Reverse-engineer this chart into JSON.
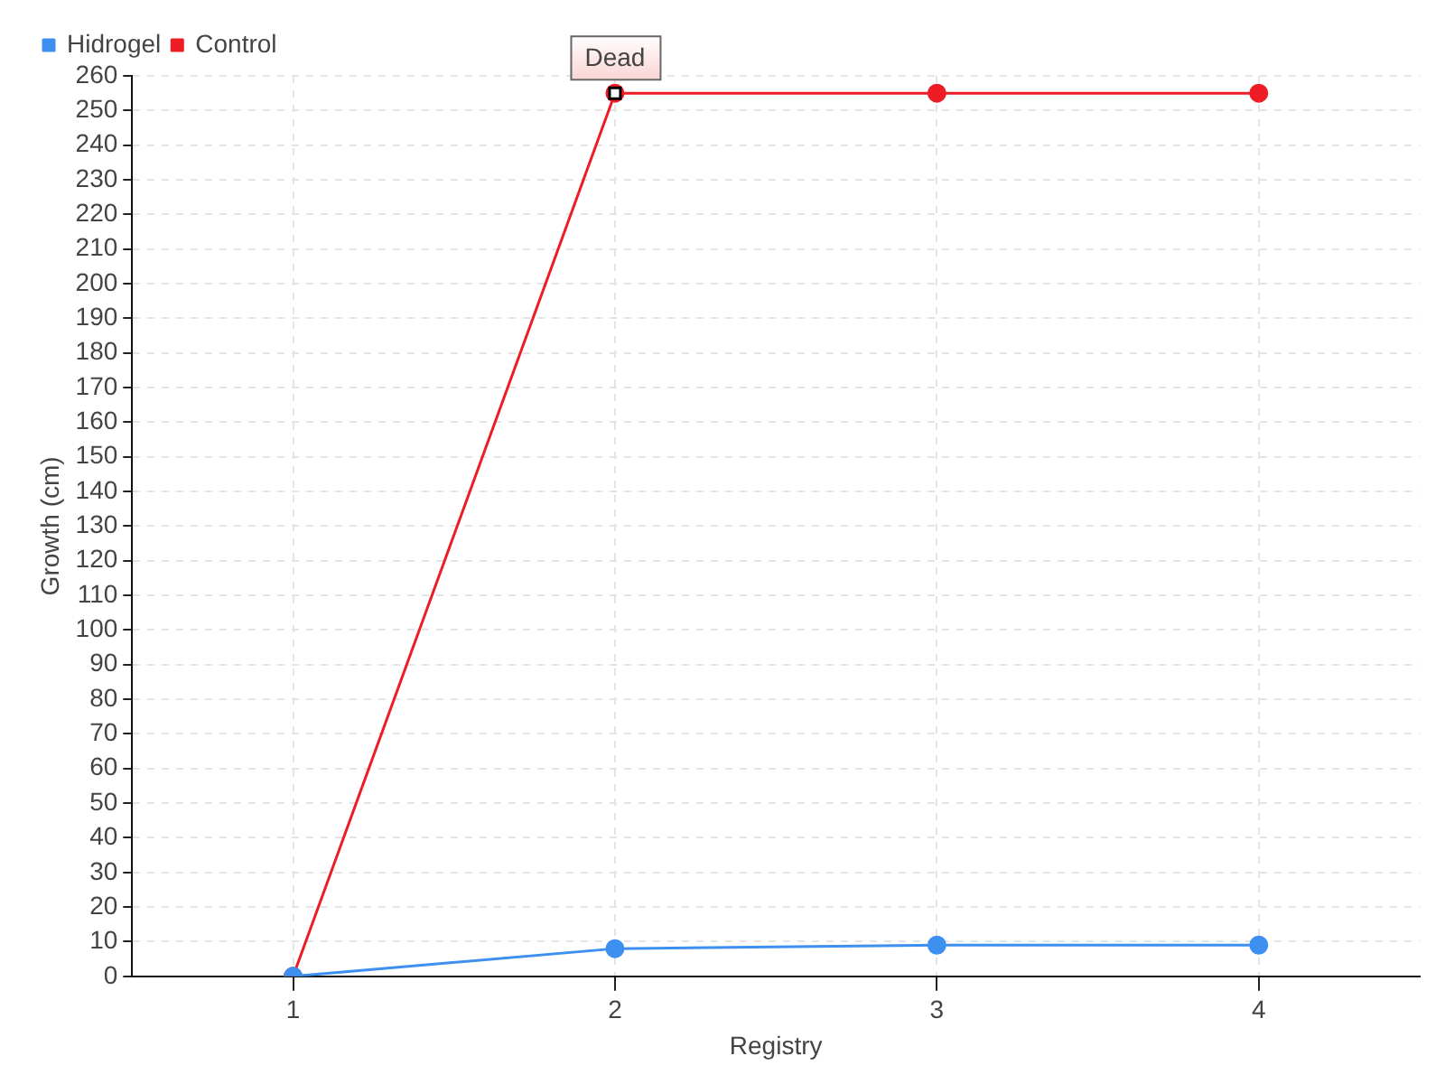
{
  "chart_data": {
    "type": "line",
    "xlabel": "Registry",
    "ylabel": "Growth (cm)",
    "categories": [
      "1",
      "2",
      "3",
      "4"
    ],
    "series": [
      {
        "name": "Hidrogel",
        "color": "#3d8ff0",
        "values": [
          0,
          8,
          9,
          9
        ]
      },
      {
        "name": "Control",
        "color": "#ee1c25",
        "values": [
          0,
          255,
          255,
          255
        ]
      }
    ],
    "ylim": [
      0,
      260
    ],
    "yticks": [
      0,
      10,
      20,
      30,
      40,
      50,
      60,
      70,
      80,
      90,
      100,
      110,
      120,
      130,
      140,
      150,
      160,
      170,
      180,
      190,
      200,
      210,
      220,
      230,
      240,
      250,
      260
    ],
    "annotations": [
      {
        "text": "Dead",
        "x": "2",
        "y": 255
      }
    ],
    "grid": true,
    "legend": "top left",
    "marker": "circle",
    "line_style": "solid"
  }
}
